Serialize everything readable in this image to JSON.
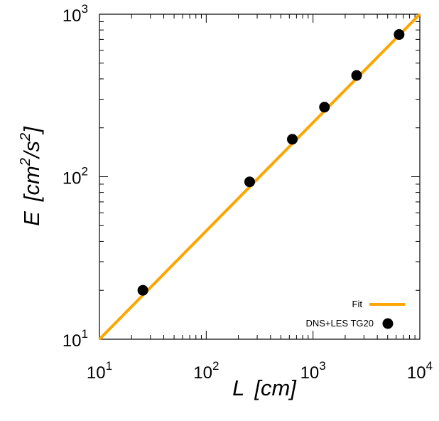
{
  "chart_data": {
    "type": "scatter",
    "xscale": "log",
    "yscale": "log",
    "xlim": [
      10,
      10000
    ],
    "ylim": [
      10,
      1000
    ],
    "xlabel_base": "L",
    "xlabel_unit": "[cm]",
    "ylabel_base": "E",
    "ylabel_unit_a": "[cm",
    "ylabel_unit_exp_a": "2",
    "ylabel_unit_b": "/s",
    "ylabel_unit_exp_b": "2",
    "ylabel_unit_c": "]",
    "x_ticks": [
      {
        "value": 10,
        "base": "10",
        "exp": "1"
      },
      {
        "value": 100,
        "base": "10",
        "exp": "2"
      },
      {
        "value": 1000,
        "base": "10",
        "exp": "3"
      },
      {
        "value": 10000,
        "base": "10",
        "exp": "4"
      }
    ],
    "y_ticks": [
      {
        "value": 10,
        "base": "10",
        "exp": "1"
      },
      {
        "value": 100,
        "base": "10",
        "exp": "2"
      },
      {
        "value": 1000,
        "base": "10",
        "exp": "3"
      }
    ],
    "grid": false,
    "legend_position": "bottom-right",
    "series": [
      {
        "name": "Fit",
        "kind": "line",
        "color": "#ffa500",
        "x": [
          10,
          10000
        ],
        "y": [
          10,
          1000
        ]
      },
      {
        "name": "DNS+LES TG20",
        "kind": "points",
        "color": "#000000",
        "x": [
          25.5,
          255,
          640,
          1280,
          2560,
          6400
        ],
        "y": [
          20,
          93,
          170,
          268,
          420,
          750
        ]
      }
    ]
  }
}
